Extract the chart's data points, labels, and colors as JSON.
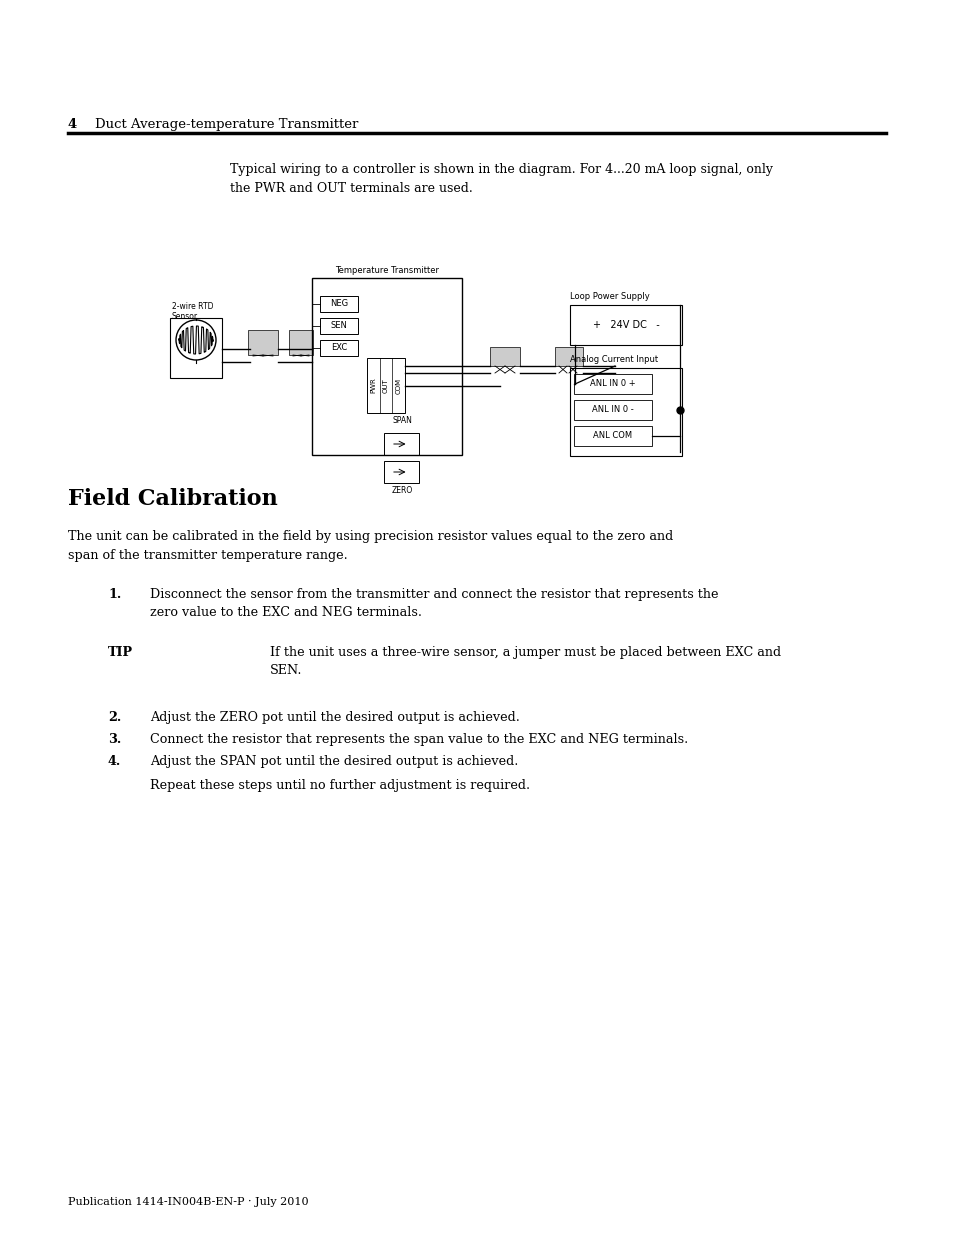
{
  "page_number": "4",
  "header_text": "Duct Average-temperature Transmitter",
  "footer_text": "Publication 1414-IN004B-EN-P · July 2010",
  "intro_text": "Typical wiring to a controller is shown in the diagram. For 4...20 mA loop signal, only\nthe PWR and OUT terminals are used.",
  "section_title": "Field Calibration",
  "section_intro": "The unit can be calibrated in the field by using precision resistor values equal to the zero and\nspan of the transmitter temperature range.",
  "step1_num": "1.",
  "step1": "Disconnect the sensor from the transmitter and connect the resistor that represents the\nzero value to the EXC and NEG terminals.",
  "tip_label": "TIP",
  "tip_text": "If the unit uses a three-wire sensor, a jumper must be placed between EXC and\nSEN.",
  "step2_num": "2.",
  "step2": "Adjust the ZERO pot until the desired output is achieved.",
  "step3_num": "3.",
  "step3": "Connect the resistor that represents the span value to the EXC and NEG terminals.",
  "step4_num": "4.",
  "step4": "Adjust the SPAN pot until the desired output is achieved.",
  "repeat_text": "Repeat these steps until no further adjustment is required.",
  "bg_color": "#ffffff",
  "text_color": "#000000",
  "sensor_label_line1": "2-wire RTD",
  "sensor_label_line2": "Sensor",
  "transmitter_label": "Temperature Transmitter",
  "loop_supply_label": "Loop Power Supply",
  "analog_input_label": "Analog Current Input",
  "neg_label": "NEG",
  "sen_label": "SEN",
  "exc_label": "EXC",
  "pwr_label": "PWR",
  "out_label": "OUT",
  "com_label": "COM",
  "span_label": "SPAN",
  "zero_label": "ZERO",
  "v24_label": "+   24V DC   -",
  "anl_in0_pos": "ANL IN 0 +",
  "anl_in0_neg": "ANL IN 0 -",
  "anl_com": "ANL COM"
}
